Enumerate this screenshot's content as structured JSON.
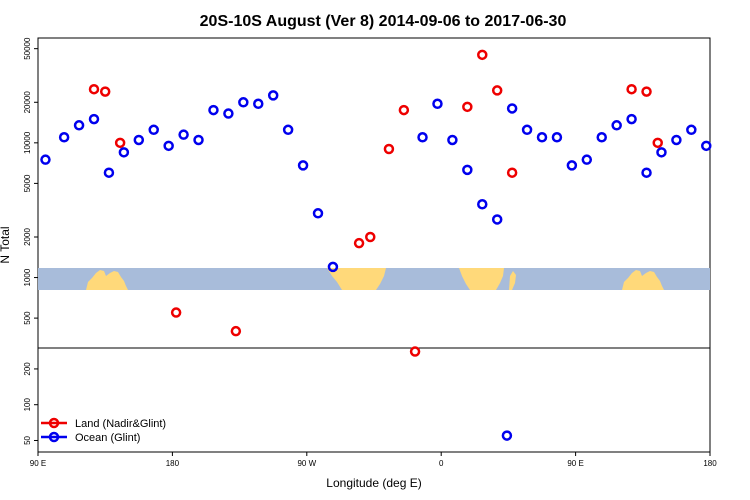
{
  "chart_data": {
    "type": "scatter",
    "title": "20S-10S August (Ver 8)   2014-09-06 to 2017-06-30",
    "xlabel": "Longitude (deg E)",
    "ylabel": "N Total",
    "y_scale": "log",
    "xlim": [
      90,
      540
    ],
    "upper_ylim": [
      300,
      60000
    ],
    "lower_ylim": [
      40,
      300
    ],
    "x_ticks": [
      {
        "value": 90,
        "label": "90 E"
      },
      {
        "value": 180,
        "label": "180"
      },
      {
        "value": 270,
        "label": "90 W"
      },
      {
        "value": 360,
        "label": "0"
      },
      {
        "value": 450,
        "label": "90 E"
      },
      {
        "value": 540,
        "label": "180"
      }
    ],
    "upper_y_ticks": [
      {
        "value": 500,
        "label": "500"
      },
      {
        "value": 1000,
        "label": "1000"
      },
      {
        "value": 2000,
        "label": "2000"
      },
      {
        "value": 5000,
        "label": "5000"
      },
      {
        "value": 10000,
        "label": "10000"
      },
      {
        "value": 20000,
        "label": "20000"
      },
      {
        "value": 50000,
        "label": "50000"
      }
    ],
    "lower_y_ticks": [
      {
        "value": 50,
        "label": "50"
      },
      {
        "value": 100,
        "label": "100"
      },
      {
        "value": 200,
        "label": "200"
      }
    ],
    "series": [
      {
        "name": "Land (Nadir&Glint)",
        "color": "#ee0000",
        "points": [
          [
            127.5,
            25000
          ],
          [
            135,
            24000
          ],
          [
            145,
            10000
          ],
          [
            182.5,
            550
          ],
          [
            222.5,
            400
          ],
          [
            305,
            1800
          ],
          [
            312.5,
            2000
          ],
          [
            325,
            9000
          ],
          [
            335,
            17500
          ],
          [
            342.5,
            280
          ],
          [
            377.5,
            18500
          ],
          [
            387.5,
            45000
          ],
          [
            397.5,
            24500
          ],
          [
            407.5,
            6000
          ],
          [
            487.5,
            25000
          ],
          [
            497.5,
            24000
          ],
          [
            505,
            10000
          ]
        ]
      },
      {
        "name": "Ocean (Glint)",
        "color": "#0000ee",
        "points": [
          [
            95,
            7500
          ],
          [
            107.5,
            11000
          ],
          [
            117.5,
            13500
          ],
          [
            127.5,
            15000
          ],
          [
            137.5,
            6000
          ],
          [
            147.5,
            8500
          ],
          [
            157.5,
            10500
          ],
          [
            167.5,
            12500
          ],
          [
            177.5,
            9500
          ],
          [
            187.5,
            11500
          ],
          [
            197.5,
            10500
          ],
          [
            207.5,
            17500
          ],
          [
            217.5,
            16500
          ],
          [
            227.5,
            20000
          ],
          [
            237.5,
            19500
          ],
          [
            247.5,
            22500
          ],
          [
            257.5,
            12500
          ],
          [
            267.5,
            6800
          ],
          [
            277.5,
            3000
          ],
          [
            287.5,
            1200
          ],
          [
            347.5,
            11000
          ],
          [
            357.5,
            19500
          ],
          [
            367.5,
            10500
          ],
          [
            377.5,
            6300
          ],
          [
            387.5,
            3500
          ],
          [
            397.5,
            2700
          ],
          [
            407.5,
            18000
          ],
          [
            417.5,
            12500
          ],
          [
            427.5,
            11000
          ],
          [
            437.5,
            11000
          ],
          [
            447.5,
            6800
          ],
          [
            457.5,
            7500
          ],
          [
            467.5,
            11000
          ],
          [
            477.5,
            13500
          ],
          [
            487.5,
            15000
          ],
          [
            497.5,
            6000
          ],
          [
            507.5,
            8500
          ],
          [
            517.5,
            10500
          ],
          [
            527.5,
            12500
          ],
          [
            537.5,
            9500
          ],
          [
            404,
            55
          ]
        ]
      }
    ],
    "legend_position": "bottom-left",
    "map_strip": {
      "ocean_color": "#a8bcda",
      "land_color": "#ffd97a"
    }
  }
}
